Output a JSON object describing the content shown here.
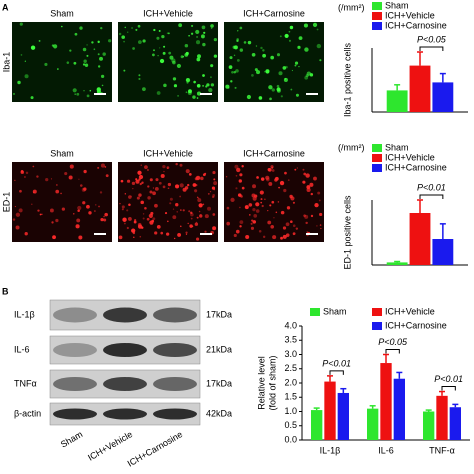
{
  "panel_labels": [
    "A",
    "B"
  ],
  "micrographs": {
    "columns": [
      "Sham",
      "ICH+Vehicle",
      "ICH+Carnosine"
    ],
    "rows": [
      "Iba-1",
      "ED-1"
    ]
  },
  "blot": {
    "proteins": [
      "IL-1β",
      "IL-6",
      "TNFα",
      "β-actin"
    ],
    "sizes": [
      "17kDa",
      "21kDa",
      "17kDa",
      "42kDa"
    ],
    "lanes": [
      "Sham",
      "ICH+Vehicle",
      "ICH+Carnosine"
    ]
  },
  "chart_data": [
    {
      "type": "bar",
      "unit": "(/mm²)",
      "y_label": [
        "Iba-1 positive cells"
      ],
      "ylim": [
        0,
        400
      ],
      "legend": "upper right",
      "annotations": [
        "P<0.05"
      ],
      "series": [
        {
          "name": "Sham",
          "color": "#2ee62e",
          "values": [
            135
          ],
          "errors": [
            35
          ]
        },
        {
          "name": "ICH+Vehicle",
          "color": "#ee1111",
          "values": [
            290
          ],
          "errors": [
            85
          ]
        },
        {
          "name": "ICH+Carnosine",
          "color": "#1a1aee",
          "values": [
            185
          ],
          "errors": [
            55
          ]
        }
      ]
    },
    {
      "type": "bar",
      "unit": "(/mm²)",
      "y_label": [
        "ED-1 positive cells"
      ],
      "ylim": [
        0,
        300
      ],
      "legend": "upper right",
      "annotations": [
        "P<0.01"
      ],
      "series": [
        {
          "name": "Sham",
          "color": "#2ee62e",
          "values": [
            12
          ],
          "errors": [
            4
          ]
        },
        {
          "name": "ICH+Vehicle",
          "color": "#ee1111",
          "values": [
            240
          ],
          "errors": [
            60
          ]
        },
        {
          "name": "ICH+Carnosine",
          "color": "#1a1aee",
          "values": [
            120
          ],
          "errors": [
            70
          ]
        }
      ]
    },
    {
      "type": "bar",
      "y_label": [
        "Relative level",
        "(fold of sham)"
      ],
      "ylim": [
        0,
        4
      ],
      "legend": "top",
      "yticks": [
        {
          "value": 0,
          "label": "0.0"
        },
        {
          "value": 0.5,
          "label": "0.5"
        },
        {
          "value": 1,
          "label": "1.0"
        },
        {
          "value": 1.5,
          "label": "1.5"
        },
        {
          "value": 2,
          "label": "2.0"
        },
        {
          "value": 2.5,
          "label": "2.5"
        },
        {
          "value": 3,
          "label": "3.0"
        },
        {
          "value": 3.5,
          "label": "3.5"
        },
        {
          "value": 4,
          "label": "4.0"
        }
      ],
      "categories": [
        "IL-1β",
        "IL-6",
        "TNF-α"
      ],
      "annotations": [
        "P<0.01",
        "P<0.05",
        "P<0.01"
      ],
      "series": [
        {
          "name": "Sham",
          "color": "#2ee62e",
          "values": [
            1.05,
            1.1,
            1.0
          ],
          "errors": [
            0.07,
            0.1,
            0.05
          ]
        },
        {
          "name": "ICH+Vehicle",
          "color": "#ee1111",
          "values": [
            2.05,
            2.7,
            1.55
          ],
          "errors": [
            0.2,
            0.3,
            0.15
          ]
        },
        {
          "name": "ICH+Carnosine",
          "color": "#1a1aee",
          "values": [
            1.65,
            2.15,
            1.15
          ],
          "errors": [
            0.15,
            0.22,
            0.1
          ]
        }
      ]
    }
  ]
}
